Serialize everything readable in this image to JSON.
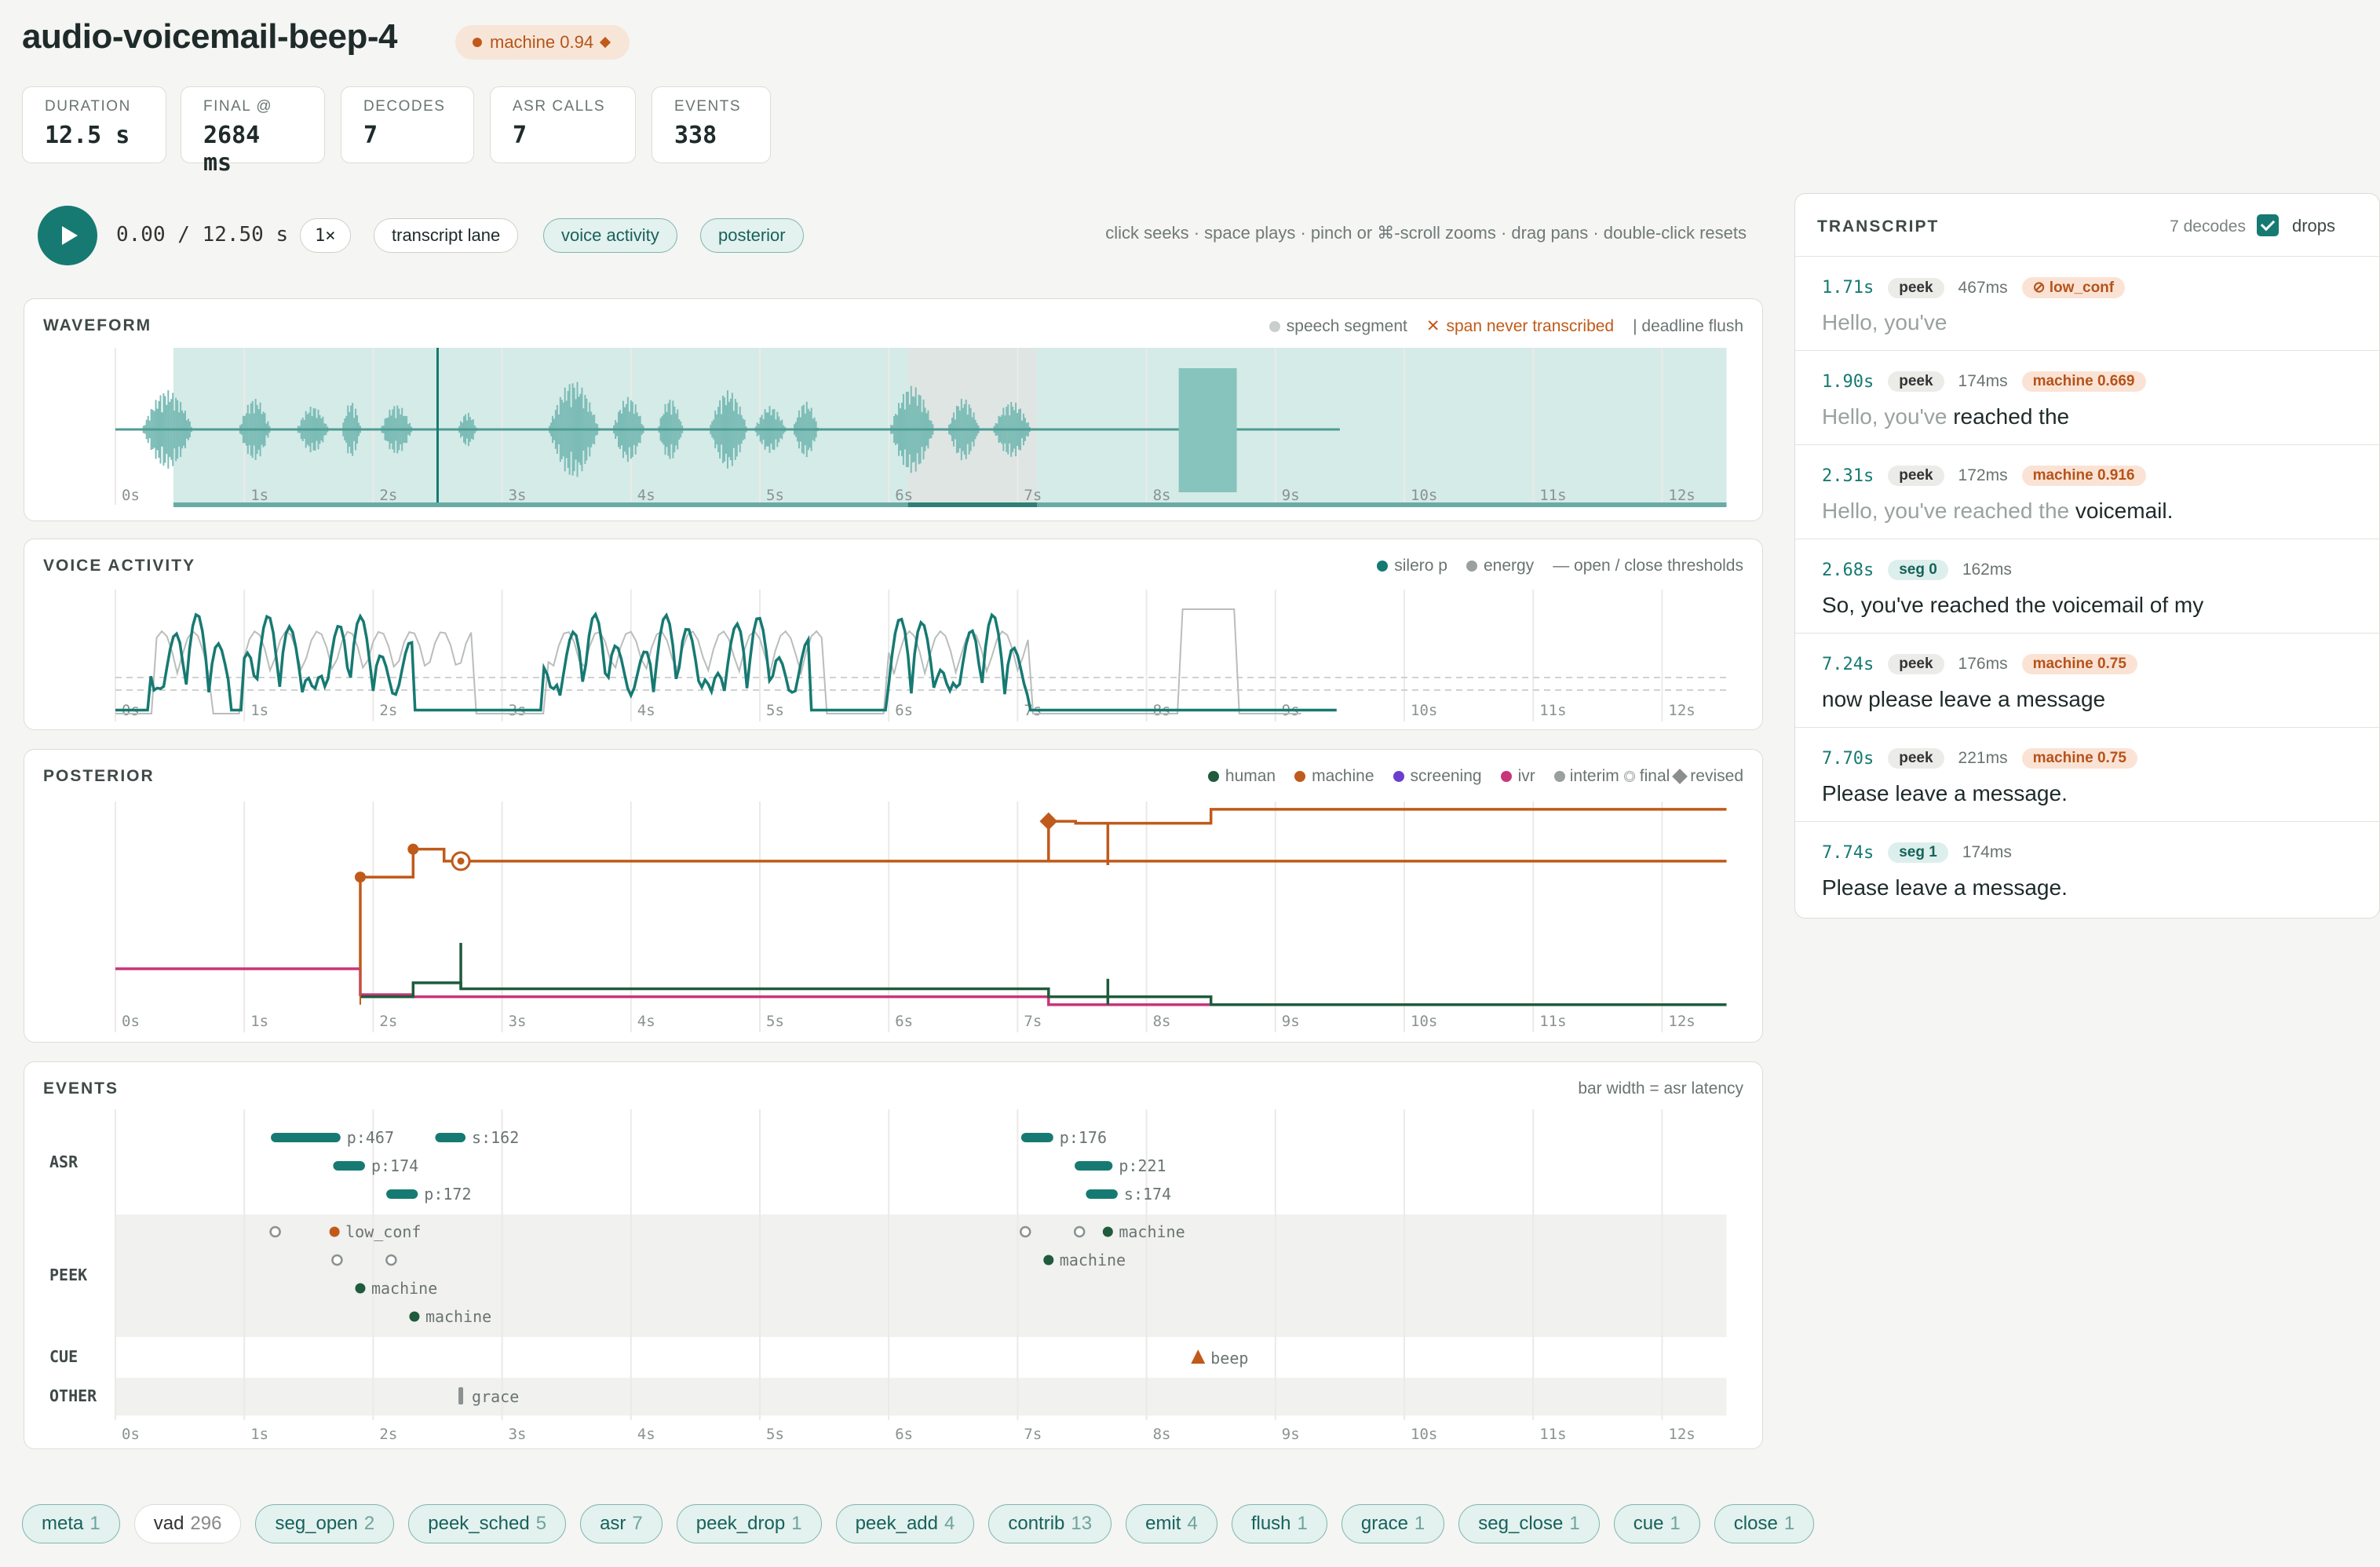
{
  "header": {
    "title": "audio-voicemail-beep-4",
    "classification": "machine 0.94"
  },
  "stats": [
    {
      "label": "DURATION",
      "value": "12.5 s"
    },
    {
      "label": "FINAL @",
      "value": "2684 ms"
    },
    {
      "label": "DECODES",
      "value": "7"
    },
    {
      "label": "ASR CALLS",
      "value": "7"
    },
    {
      "label": "EVENTS",
      "value": "338"
    }
  ],
  "player": {
    "time": "0.00 / 12.50 s",
    "speed": "1×",
    "toggles": [
      "transcript lane",
      "voice activity",
      "posterior"
    ],
    "hint": "click seeks · space plays · pinch or ⌘-scroll zooms · drag pans · double-click resets"
  },
  "axis_ticks": [
    "0s",
    "1s",
    "2s",
    "3s",
    "4s",
    "5s",
    "6s",
    "7s",
    "8s",
    "9s",
    "10s",
    "11s",
    "12s"
  ],
  "waveform": {
    "title": "WAVEFORM",
    "legend": {
      "segment": "speech segment",
      "never": "span never transcribed",
      "flush": "| deadline flush"
    },
    "colors": {
      "wave": "#7cbcb6",
      "segment": "#d5ebe8",
      "never": "#dfe5e3"
    }
  },
  "voice_activity": {
    "title": "VOICE ACTIVITY",
    "legend": {
      "silero": "silero p",
      "energy": "energy",
      "thresholds": "— open / close thresholds"
    },
    "colors": {
      "silero": "#167a72",
      "energy": "#b9bdbc"
    }
  },
  "posterior": {
    "title": "POSTERIOR",
    "legend": {
      "human": "human",
      "machine": "machine",
      "screening": "screening",
      "ivr": "ivr",
      "interim": "interim",
      "final": "final",
      "revised": "revised"
    },
    "colors": {
      "human": "#1f5b3c",
      "machine": "#c05a1a",
      "screening": "#6a3fd0",
      "ivr": "#c8357a"
    }
  },
  "events": {
    "title": "EVENTS",
    "note": "bar width = asr latency",
    "lanes": [
      "ASR",
      "PEEK",
      "CUE",
      "OTHER"
    ],
    "asr": [
      {
        "label": "p:467",
        "t": 1.71,
        "lat": 0.467,
        "row": 0
      },
      {
        "label": "s:162",
        "t": 2.68,
        "lat": 0.162,
        "row": 0
      },
      {
        "label": "p:174",
        "t": 1.9,
        "lat": 0.174,
        "row": 1
      },
      {
        "label": "p:172",
        "t": 2.31,
        "lat": 0.172,
        "row": 2
      },
      {
        "label": "p:176",
        "t": 7.24,
        "lat": 0.176,
        "row": 0
      },
      {
        "label": "p:221",
        "t": 7.7,
        "lat": 0.221,
        "row": 1
      },
      {
        "label": "s:174",
        "t": 7.74,
        "lat": 0.174,
        "row": 2
      }
    ],
    "peek": [
      {
        "t": 1.24,
        "row": 0,
        "kind": "open",
        "label": ""
      },
      {
        "t": 1.7,
        "row": 0,
        "kind": "low",
        "label": "low_conf"
      },
      {
        "t": 1.72,
        "row": 1,
        "kind": "open",
        "label": ""
      },
      {
        "t": 2.14,
        "row": 1,
        "kind": "open",
        "label": ""
      },
      {
        "t": 1.9,
        "row": 2,
        "kind": "machine",
        "label": "machine"
      },
      {
        "t": 2.32,
        "row": 3,
        "kind": "machine",
        "label": "machine"
      },
      {
        "t": 7.06,
        "row": 0,
        "kind": "open",
        "label": ""
      },
      {
        "t": 7.48,
        "row": 0,
        "kind": "open",
        "label": ""
      },
      {
        "t": 7.7,
        "row": 0,
        "kind": "machine",
        "label": "machine"
      },
      {
        "t": 7.24,
        "row": 1,
        "kind": "machine",
        "label": "machine"
      }
    ],
    "cue": [
      {
        "t": 8.4,
        "label": "beep"
      }
    ],
    "other": [
      {
        "t": 2.68,
        "label": "grace"
      }
    ]
  },
  "transcript": {
    "title": "TRANSCRIPT",
    "count": "7 decodes",
    "drops_label": "drops",
    "rows": [
      {
        "time": "1.71s",
        "kind": "peek",
        "lat": "467ms",
        "tag": "⊘ low_conf",
        "ghost": "Hello, you've",
        "text": ""
      },
      {
        "time": "1.90s",
        "kind": "peek",
        "lat": "174ms",
        "tag": "machine 0.669",
        "ghost": "Hello, you've",
        "text": " reached the"
      },
      {
        "time": "2.31s",
        "kind": "peek",
        "lat": "172ms",
        "tag": "machine 0.916",
        "ghost": "Hello, you've reached the",
        "text": " voicemail."
      },
      {
        "time": "2.68s",
        "kind": "seg 0",
        "lat": "162ms",
        "tag": "",
        "ghost": "",
        "text": "So, you've reached the voicemail of my"
      },
      {
        "time": "7.24s",
        "kind": "peek",
        "lat": "176ms",
        "tag": "machine 0.75",
        "ghost": "",
        "text": "now please leave a message"
      },
      {
        "time": "7.70s",
        "kind": "peek",
        "lat": "221ms",
        "tag": "machine 0.75",
        "ghost": "",
        "text": "Please leave a message."
      },
      {
        "time": "7.74s",
        "kind": "seg 1",
        "lat": "174ms",
        "tag": "",
        "ghost": "",
        "text": "Please leave a message."
      }
    ]
  },
  "filters": [
    {
      "name": "meta",
      "count": "1",
      "on": true
    },
    {
      "name": "vad",
      "count": "296",
      "on": false
    },
    {
      "name": "seg_open",
      "count": "2",
      "on": true
    },
    {
      "name": "peek_sched",
      "count": "5",
      "on": true
    },
    {
      "name": "asr",
      "count": "7",
      "on": true
    },
    {
      "name": "peek_drop",
      "count": "1",
      "on": true
    },
    {
      "name": "peek_add",
      "count": "4",
      "on": true
    },
    {
      "name": "contrib",
      "count": "13",
      "on": true
    },
    {
      "name": "emit",
      "count": "4",
      "on": true
    },
    {
      "name": "flush",
      "count": "1",
      "on": true
    },
    {
      "name": "grace",
      "count": "1",
      "on": true
    },
    {
      "name": "seg_close",
      "count": "1",
      "on": true
    },
    {
      "name": "cue",
      "count": "1",
      "on": true
    },
    {
      "name": "close",
      "count": "1",
      "on": true
    }
  ]
}
